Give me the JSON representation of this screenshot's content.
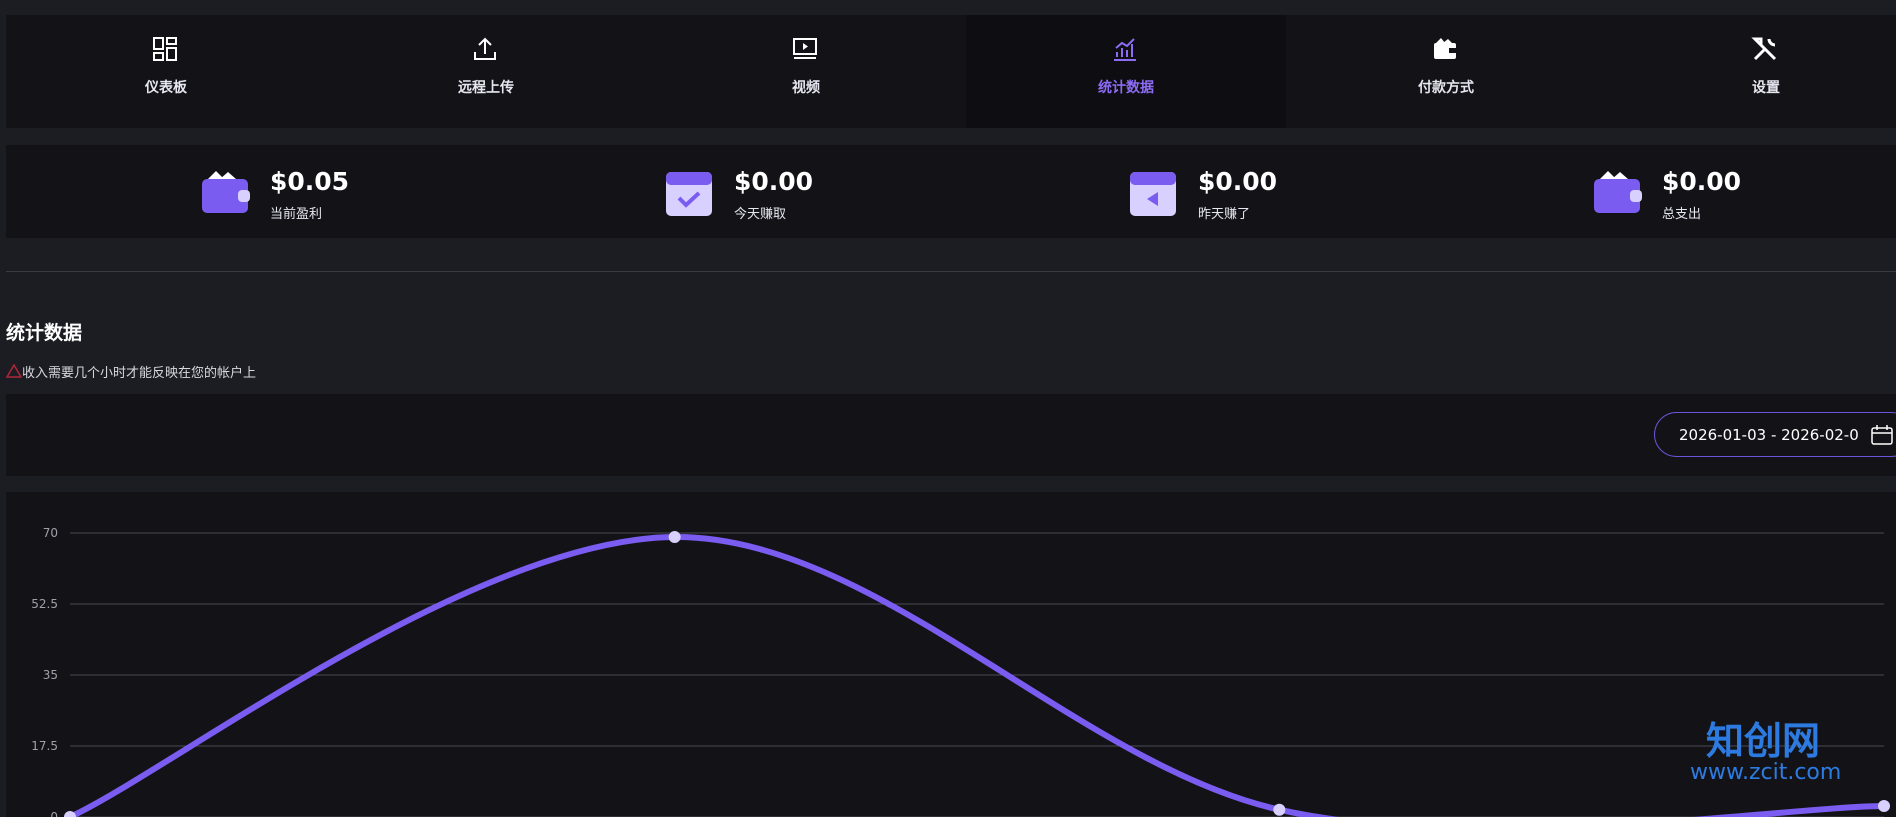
{
  "nav": [
    {
      "label": "仪表板"
    },
    {
      "label": "远程上传"
    },
    {
      "label": "视频"
    },
    {
      "label": "统计数据",
      "active": true
    },
    {
      "label": "付款方式"
    },
    {
      "label": "设置"
    }
  ],
  "stats": [
    {
      "value": "$0.05",
      "label": "当前盈利"
    },
    {
      "value": "$0.00",
      "label": "今天赚取"
    },
    {
      "value": "$0.00",
      "label": "昨天赚了"
    },
    {
      "value": "$0.00",
      "label": "总支出"
    }
  ],
  "section_title": "统计数据",
  "notice": "收入需要几个小时才能反映在您的帐户上",
  "date_range": "2026-01-03 - 2026-02-0",
  "watermark": {
    "brand": "知创网",
    "url": "www.zcit.com"
  },
  "chart_data": {
    "type": "line",
    "categories": [
      null,
      null,
      null,
      null
    ],
    "series": [
      {
        "name": null,
        "color": "#7b5cf0",
        "values": [
          0,
          69,
          1.8,
          2.7
        ]
      }
    ],
    "ylim": [
      0,
      70
    ],
    "yticks": [
      0,
      17.5,
      35,
      52.5,
      70
    ],
    "grid": true
  }
}
